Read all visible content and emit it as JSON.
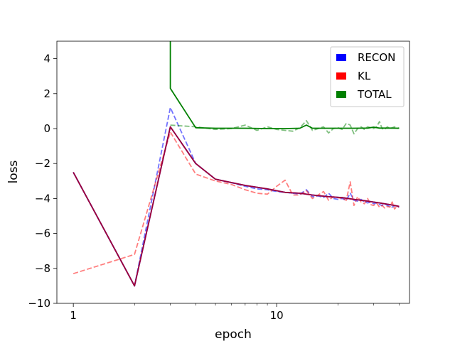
{
  "chart_data": {
    "type": "line",
    "xlabel": "epoch",
    "ylabel": "loss",
    "xscale": "log",
    "xlim": [
      0.83,
      45
    ],
    "ylim": [
      -10,
      5
    ],
    "xticks": [
      {
        "value": 1,
        "label": "1"
      },
      {
        "value": 10,
        "label": "10"
      }
    ],
    "yticks": [
      -10,
      -8,
      -6,
      -4,
      -2,
      0,
      2,
      4
    ],
    "grid": false,
    "legend_position": "top-right",
    "series": [
      {
        "name": "RECON",
        "color": "#0000ff",
        "legend_color": "#0000ff",
        "style": "dashed",
        "opacity": 0.55,
        "x": [
          1,
          2,
          3,
          4,
          5,
          6,
          7,
          8,
          9,
          10,
          11,
          12,
          13,
          14,
          15,
          16,
          17,
          18,
          19,
          20,
          21,
          22,
          23,
          24,
          25,
          26,
          27,
          28,
          29,
          30,
          31,
          32,
          33,
          34,
          35,
          36,
          37,
          38,
          39,
          40
        ],
        "y": [
          -2.5,
          -9.0,
          1.2,
          -2.0,
          -2.9,
          -3.1,
          -3.3,
          -3.45,
          -3.5,
          -3.6,
          -3.65,
          -3.7,
          -3.75,
          -3.5,
          -3.9,
          -3.85,
          -3.95,
          -3.7,
          -4.0,
          -4.05,
          -4.0,
          -4.1,
          -3.7,
          -4.1,
          -4.15,
          -4.05,
          -4.2,
          -4.25,
          -4.2,
          -4.3,
          -4.25,
          -4.35,
          -4.4,
          -4.3,
          -4.4,
          -4.45,
          -4.5,
          -4.4,
          -4.45,
          -4.5
        ]
      },
      {
        "name": "KL",
        "color": "#ff0000",
        "legend_color": "#ff0000",
        "style": "dashed",
        "opacity": 0.5,
        "x": [
          1,
          2,
          3,
          4,
          5,
          6,
          7,
          8,
          9,
          10,
          11,
          12,
          13,
          14,
          15,
          16,
          17,
          18,
          19,
          20,
          21,
          22,
          23,
          24,
          25,
          26,
          27,
          28,
          29,
          30,
          31,
          32,
          33,
          34,
          35,
          36,
          37,
          38,
          39,
          40
        ],
        "y": [
          -8.3,
          -7.2,
          -0.2,
          -2.6,
          -3.0,
          -3.2,
          -3.5,
          -3.7,
          -3.75,
          -3.3,
          -2.95,
          -3.8,
          -3.8,
          -3.55,
          -4.0,
          -3.8,
          -3.6,
          -4.1,
          -3.9,
          -3.95,
          -4.0,
          -4.1,
          -3.05,
          -4.4,
          -3.9,
          -4.2,
          -4.3,
          -4.0,
          -4.35,
          -4.4,
          -4.25,
          -4.5,
          -4.4,
          -4.55,
          -4.45,
          -4.5,
          -4.2,
          -4.6,
          -4.45,
          -4.5
        ]
      },
      {
        "name": "TOTAL",
        "color": "#008000",
        "legend_color": "#008000",
        "style": "dashed",
        "opacity": 0.5,
        "x": [
          3,
          4,
          5,
          6,
          7,
          8,
          9,
          10,
          11,
          12,
          13,
          14,
          15,
          16,
          17,
          18,
          19,
          20,
          21,
          22,
          23,
          24,
          25,
          26,
          27,
          28,
          29,
          30,
          31,
          32,
          33,
          34,
          35,
          36,
          37,
          38,
          39,
          40
        ],
        "y": [
          0.2,
          0.1,
          -0.05,
          0.0,
          0.2,
          -0.1,
          0.1,
          -0.05,
          -0.1,
          -0.15,
          0.05,
          0.45,
          -0.1,
          0.0,
          0.1,
          -0.25,
          0.0,
          0.05,
          -0.05,
          0.3,
          0.2,
          -0.3,
          0.0,
          0.1,
          -0.05,
          0.1,
          0.05,
          0.0,
          0.1,
          0.4,
          0.0,
          -0.05,
          0.1,
          0.0,
          0.05,
          0.1,
          0.0,
          0.05
        ]
      },
      {
        "name": "RECON",
        "color": "#0000ff",
        "style": "solid",
        "opacity": 1,
        "x": [
          1,
          2,
          3,
          4,
          5,
          7,
          9,
          11,
          13,
          15,
          18,
          21,
          24,
          28,
          32,
          36,
          40
        ],
        "y": [
          -2.5,
          -9.0,
          0.1,
          -2.0,
          -2.9,
          -3.25,
          -3.45,
          -3.65,
          -3.7,
          -3.8,
          -3.9,
          -3.95,
          -4.05,
          -4.15,
          -4.25,
          -4.35,
          -4.45
        ]
      },
      {
        "name": "KL",
        "color": "#b00020",
        "style": "solid",
        "opacity": 0.9,
        "x": [
          1,
          2,
          3,
          4,
          5,
          7,
          9,
          11,
          13,
          15,
          18,
          21,
          24,
          28,
          32,
          36,
          40
        ],
        "y": [
          -2.5,
          -9.0,
          0.1,
          -2.0,
          -2.9,
          -3.25,
          -3.45,
          -3.65,
          -3.7,
          -3.8,
          -3.9,
          -3.95,
          -4.05,
          -4.15,
          -4.25,
          -4.35,
          -4.45
        ]
      },
      {
        "name": "TOTAL",
        "color": "#008000",
        "style": "solid",
        "opacity": 1,
        "x": [
          3,
          3,
          4,
          5,
          7,
          9,
          11,
          13,
          14,
          15,
          18,
          21,
          24,
          28,
          30,
          32,
          36,
          40
        ],
        "y": [
          5,
          2.3,
          0.05,
          0.02,
          0.02,
          0.0,
          0.0,
          0.02,
          0.2,
          0.02,
          0.02,
          0.02,
          0.02,
          0.03,
          0.08,
          0.03,
          0.03,
          0.02
        ]
      }
    ],
    "legend": [
      {
        "label": "RECON",
        "color": "#0000ff"
      },
      {
        "label": "KL",
        "color": "#ff0000"
      },
      {
        "label": "TOTAL",
        "color": "#008000"
      }
    ]
  }
}
